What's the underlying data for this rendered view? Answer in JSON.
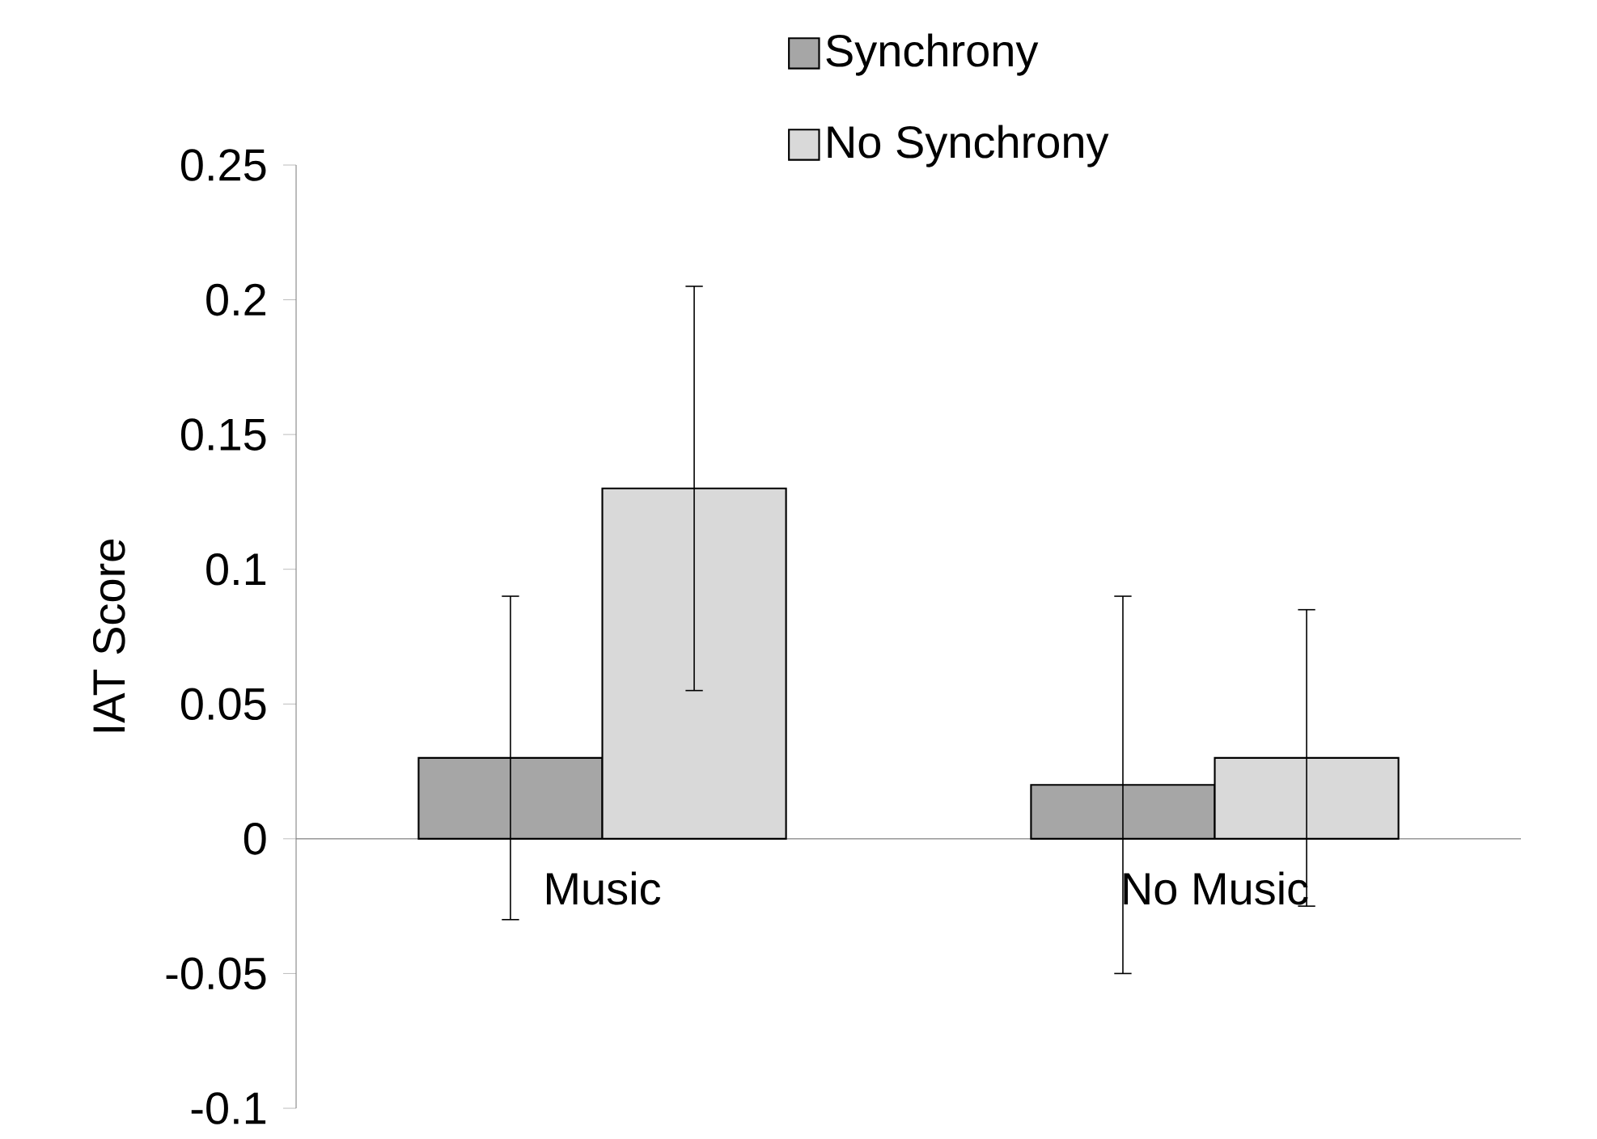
{
  "chart_data": {
    "type": "bar",
    "ylabel": "IAT Score",
    "categories": [
      "Music",
      "No Music"
    ],
    "series": [
      {
        "name": "Synchrony",
        "color": "#a6a6a6",
        "values": [
          0.03,
          0.02
        ],
        "errors": [
          [
            -0.03,
            0.09
          ],
          [
            -0.05,
            0.09
          ]
        ]
      },
      {
        "name": "No Synchrony",
        "color": "#d9d9d9",
        "values": [
          0.13,
          0.03
        ],
        "errors": [
          [
            0.055,
            0.205
          ],
          [
            -0.025,
            0.085
          ]
        ]
      }
    ],
    "ylim": [
      -0.1,
      0.25
    ],
    "yticks": [
      -0.1,
      -0.05,
      0,
      0.05,
      0.1,
      0.15,
      0.2,
      0.25
    ],
    "grid": false,
    "legend": "top"
  }
}
